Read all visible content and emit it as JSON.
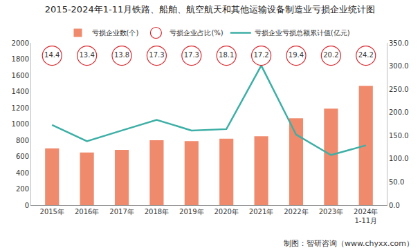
{
  "chart_data": {
    "type": "bar",
    "title": "2015-2024年1-11月铁路、船舶、航空航天和其他运输设备制造业亏损企业统计图",
    "source": "制图：智研咨询（www.chyxx.com）",
    "categories": [
      "2015年",
      "2016年",
      "2017年",
      "2018年",
      "2019年",
      "2020年",
      "2021年",
      "2022年",
      "2023年",
      "2024年 1-11月"
    ],
    "series": [
      {
        "name": "亏损企业数(个)",
        "type": "bar",
        "color": "#f08a6c",
        "values": [
          700,
          650,
          680,
          800,
          790,
          820,
          850,
          1070,
          1190,
          1470
        ]
      },
      {
        "name": "亏损企业占比(%)",
        "type": "text",
        "color": "#d9262c",
        "marker": "circle-open",
        "data_labels": true,
        "values": [
          14.4,
          13.4,
          13.8,
          17.3,
          17.3,
          18.1,
          17.2,
          19.4,
          20.2,
          24.2
        ]
      },
      {
        "name": "亏损企业亏损总额累计值(亿元)",
        "type": "line",
        "axis": "y2",
        "color": "#3dafa6",
        "values": [
          173,
          138,
          161,
          184,
          161,
          164,
          301,
          152,
          108,
          129
        ]
      }
    ],
    "ylim": [
      0,
      2000
    ],
    "yticks": [
      0,
      200,
      400,
      600,
      800,
      1000,
      1200,
      1400,
      1600,
      1800,
      2000
    ],
    "y2lim": [
      0,
      350
    ],
    "y2ticks": [
      {
        "value": 0,
        "label": "0.0"
      },
      {
        "value": 50,
        "label": "50.0"
      },
      {
        "value": 100,
        "label": "100.0"
      },
      {
        "value": 150,
        "label": "150.0"
      },
      {
        "value": 200,
        "label": "200.0"
      },
      {
        "value": 250,
        "label": "250.0"
      },
      {
        "value": 300,
        "label": "300.0"
      },
      {
        "value": 350,
        "label": "350.0"
      }
    ],
    "grid": false,
    "legend": "top"
  }
}
